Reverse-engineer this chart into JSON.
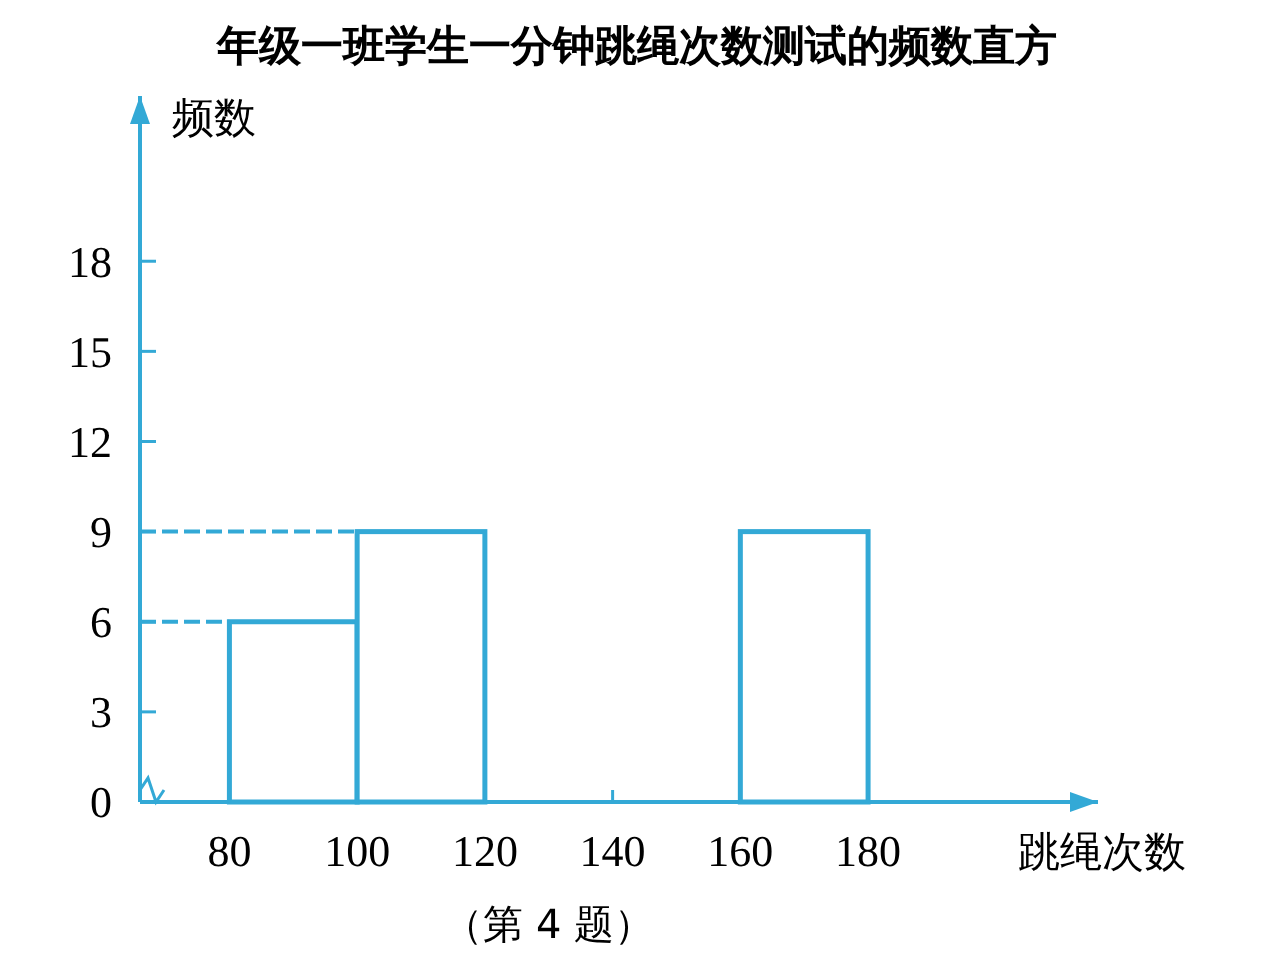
{
  "chart_data": {
    "type": "histogram",
    "title": "年级一班学生一分钟跳绳次数测试的频数直方",
    "xlabel": "跳绳次数",
    "ylabel": "频数",
    "bins": [
      80,
      100,
      120,
      140,
      160,
      180
    ],
    "values": [
      6,
      9,
      null,
      null,
      9
    ],
    "color": "#33a9d6",
    "xlim": [
      66,
      216
    ],
    "ylim": [
      0,
      23.5
    ],
    "xticks": [
      80,
      100,
      120,
      140,
      160,
      180
    ],
    "yticks": [
      0,
      3,
      6,
      9,
      12,
      15,
      18
    ],
    "ref_lines": [
      {
        "axis": "y",
        "value": 6,
        "line_style": "dashed"
      },
      {
        "axis": "y",
        "value": 9,
        "line_style": "dashed"
      }
    ],
    "annotations": [
      "（第 4 题）"
    ]
  }
}
